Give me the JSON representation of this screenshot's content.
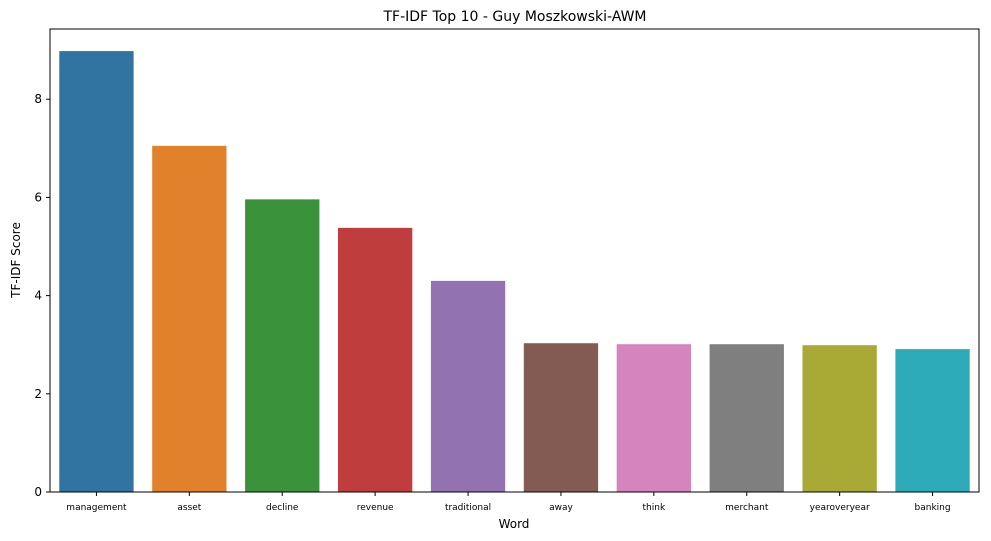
{
  "chart_data": {
    "type": "bar",
    "title": "TF-IDF Top 10 - Guy Moszkowski-AWM",
    "xlabel": "Word",
    "ylabel": "TF-IDF Score",
    "categories": [
      "management",
      "asset",
      "decline",
      "revenue",
      "traditional",
      "away",
      "think",
      "merchant",
      "yearoveryear",
      "banking"
    ],
    "values": [
      8.98,
      7.05,
      5.96,
      5.38,
      4.3,
      3.03,
      3.01,
      3.01,
      2.99,
      2.91
    ],
    "colors": [
      "#3274a1",
      "#e1812c",
      "#3a923a",
      "#c03d3e",
      "#9372b2",
      "#845b53",
      "#d684bd",
      "#7f7f7f",
      "#a9aa35",
      "#2eabb8"
    ],
    "ylim": [
      0,
      9.43
    ],
    "yticks": [
      0,
      2,
      4,
      6,
      8
    ],
    "grid": false,
    "legend": "none"
  }
}
